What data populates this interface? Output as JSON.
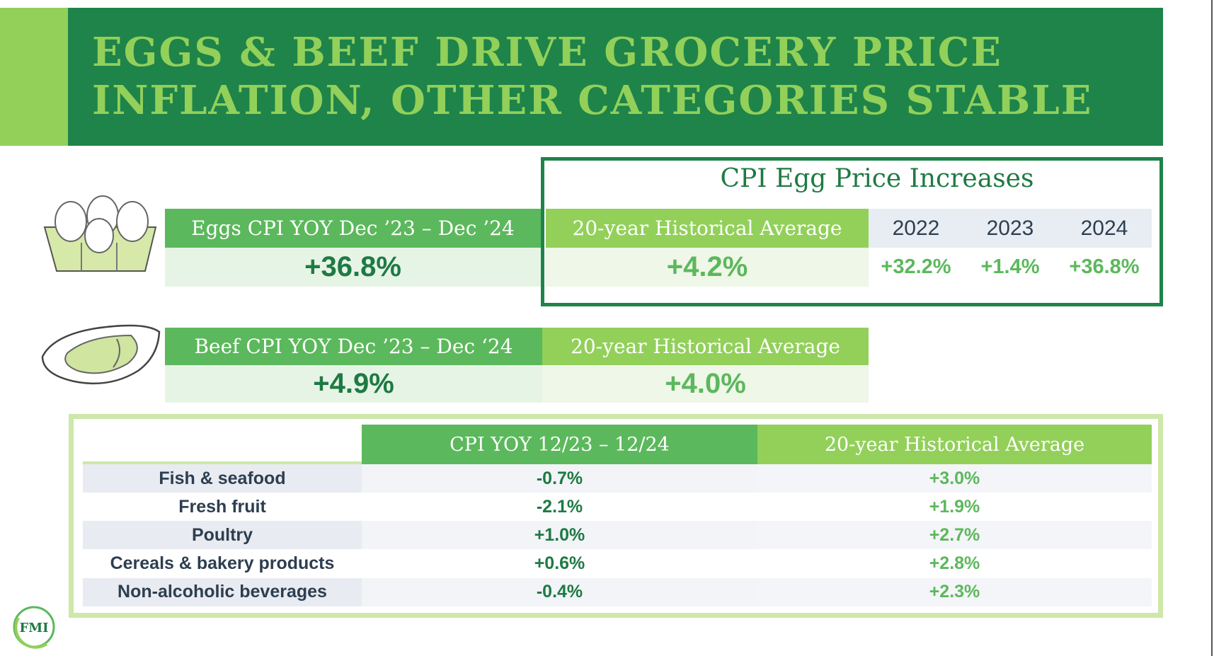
{
  "title": {
    "line1": "EGGS & BEEF DRIVE GROCERY PRICE",
    "line2": "INFLATION, OTHER CATEGORIES STABLE"
  },
  "eggs": {
    "header": "Eggs CPI YOY Dec ’23 – Dec ’24",
    "value": "+36.8%",
    "avg_header": "20-year Historical Average",
    "avg_value": "+4.2%"
  },
  "egg_box": {
    "title": "CPI Egg Price Increases",
    "years": [
      "2022",
      "2023",
      "2024"
    ],
    "values": [
      "+32.2%",
      "+1.4%",
      "+36.8%"
    ]
  },
  "beef": {
    "header": "Beef CPI YOY Dec ’23 – Dec ‘24",
    "value": "+4.9%",
    "avg_header": "20-year Historical Average",
    "avg_value": "+4.0%"
  },
  "table": {
    "headers": [
      "CPI YOY 12/23 – 12/24",
      "20-year Historical Average"
    ],
    "rows": [
      {
        "label": "Fish & seafood",
        "cpi": "-0.7%",
        "avg": "+3.0%"
      },
      {
        "label": "Fresh fruit",
        "cpi": "-2.1%",
        "avg": "+1.9%"
      },
      {
        "label": "Poultry",
        "cpi": "+1.0%",
        "avg": "+2.7%"
      },
      {
        "label": "Cereals & bakery products",
        "cpi": "+0.6%",
        "avg": "+2.8%"
      },
      {
        "label": "Non-alcoholic beverages",
        "cpi": "-0.4%",
        "avg": "+2.3%"
      }
    ]
  },
  "logo": {
    "text": "FMI"
  },
  "colors": {
    "dark_green": "#1e8449",
    "medium_green": "#5cb85c",
    "light_green": "#92d05a"
  }
}
